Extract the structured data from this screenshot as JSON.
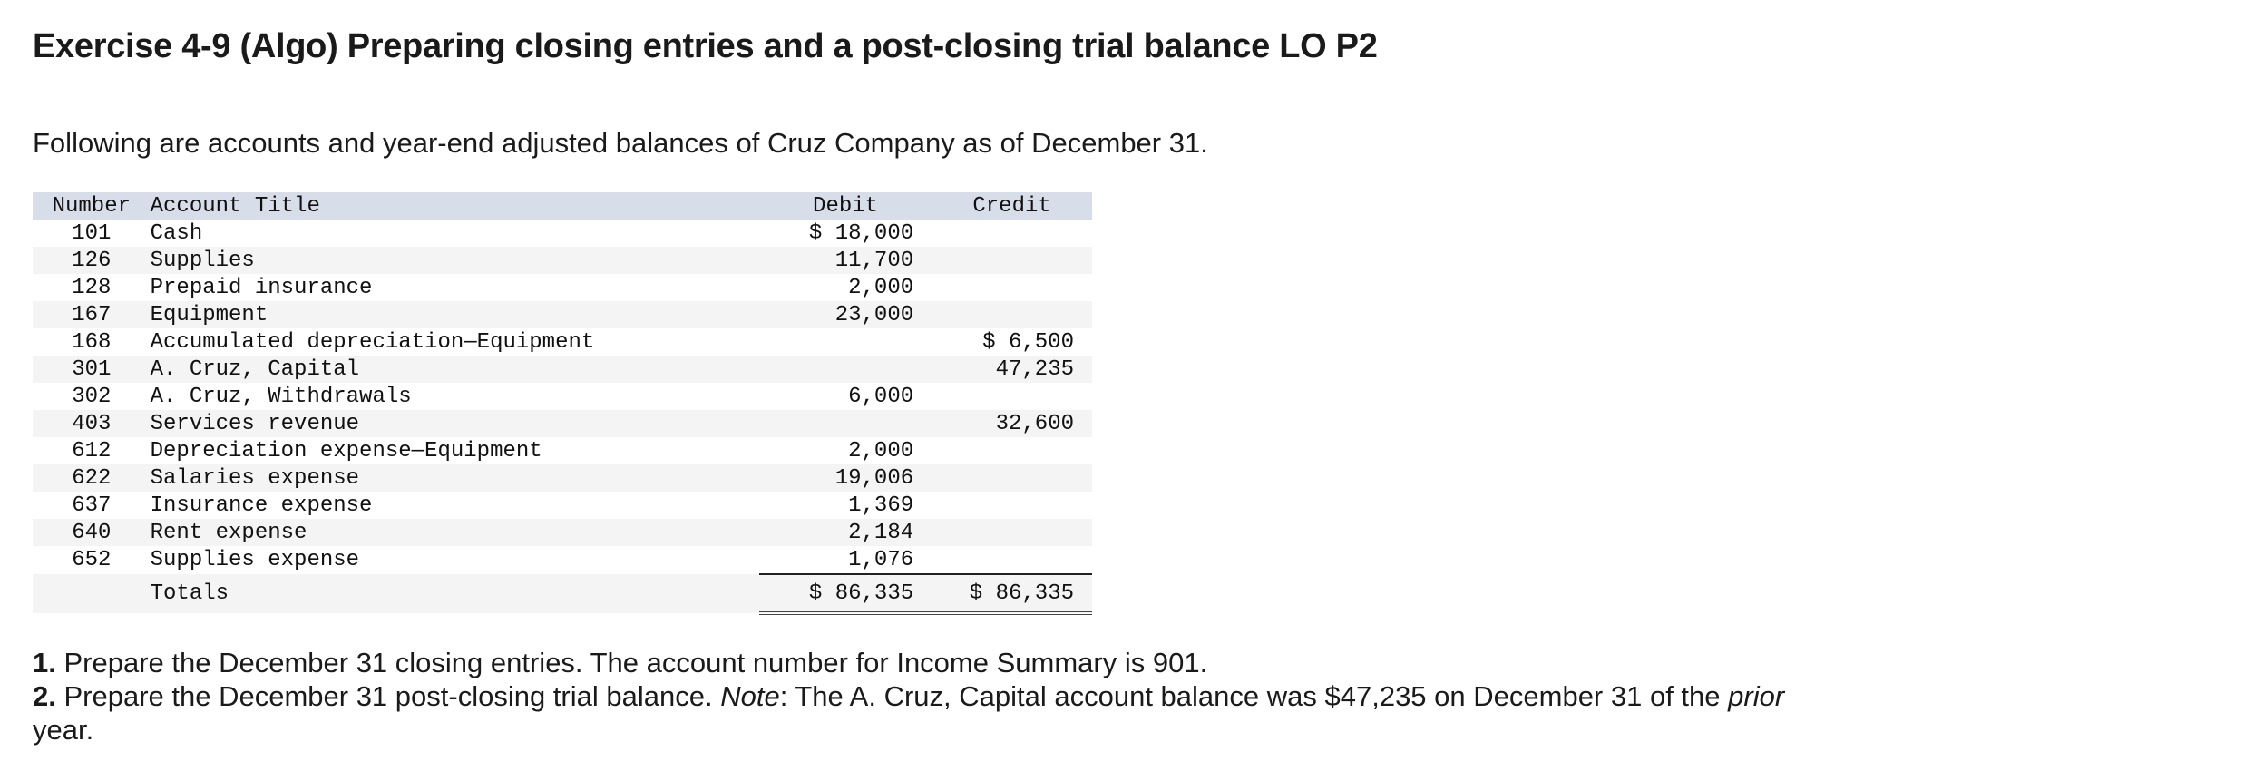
{
  "title": "Exercise 4-9 (Algo) Preparing closing entries and a post-closing trial balance LO P2",
  "intro": "Following are accounts and year-end adjusted balances of Cruz Company as of December 31.",
  "table": {
    "headers": {
      "number": "Number",
      "account": "Account Title",
      "debit": "Debit",
      "credit": "Credit"
    },
    "rows": [
      {
        "number": "101",
        "account": "Cash",
        "debit": "$ 18,000",
        "credit": ""
      },
      {
        "number": "126",
        "account": "Supplies",
        "debit": "11,700",
        "credit": ""
      },
      {
        "number": "128",
        "account": "Prepaid insurance",
        "debit": "2,000",
        "credit": ""
      },
      {
        "number": "167",
        "account": "Equipment",
        "debit": "23,000",
        "credit": ""
      },
      {
        "number": "168",
        "account": "Accumulated depreciation—Equipment",
        "debit": "",
        "credit": "$ 6,500"
      },
      {
        "number": "301",
        "account": "A. Cruz, Capital",
        "debit": "",
        "credit": "47,235"
      },
      {
        "number": "302",
        "account": "A. Cruz, Withdrawals",
        "debit": "6,000",
        "credit": ""
      },
      {
        "number": "403",
        "account": "Services revenue",
        "debit": "",
        "credit": "32,600"
      },
      {
        "number": "612",
        "account": "Depreciation expense—Equipment",
        "debit": "2,000",
        "credit": ""
      },
      {
        "number": "622",
        "account": "Salaries expense",
        "debit": "19,006",
        "credit": ""
      },
      {
        "number": "637",
        "account": "Insurance expense",
        "debit": "1,369",
        "credit": ""
      },
      {
        "number": "640",
        "account": "Rent expense",
        "debit": "2,184",
        "credit": ""
      },
      {
        "number": "652",
        "account": "Supplies expense",
        "debit": "1,076",
        "credit": ""
      }
    ],
    "totals": {
      "label": "Totals",
      "debit": "$ 86,335",
      "credit": "$ 86,335"
    }
  },
  "instructions": {
    "item1_number": "1.",
    "item1_text": " Prepare the December 31 closing entries. The account number for Income Summary is 901.",
    "item2_number": "2.",
    "item2_text_a": " Prepare the December 31 post-closing trial balance. ",
    "item2_note": "Note",
    "item2_text_b": ": The A. Cruz, Capital account balance was $47,235 on December 31 of the ",
    "item2_prior": "prior",
    "item2_text_c": " year."
  }
}
